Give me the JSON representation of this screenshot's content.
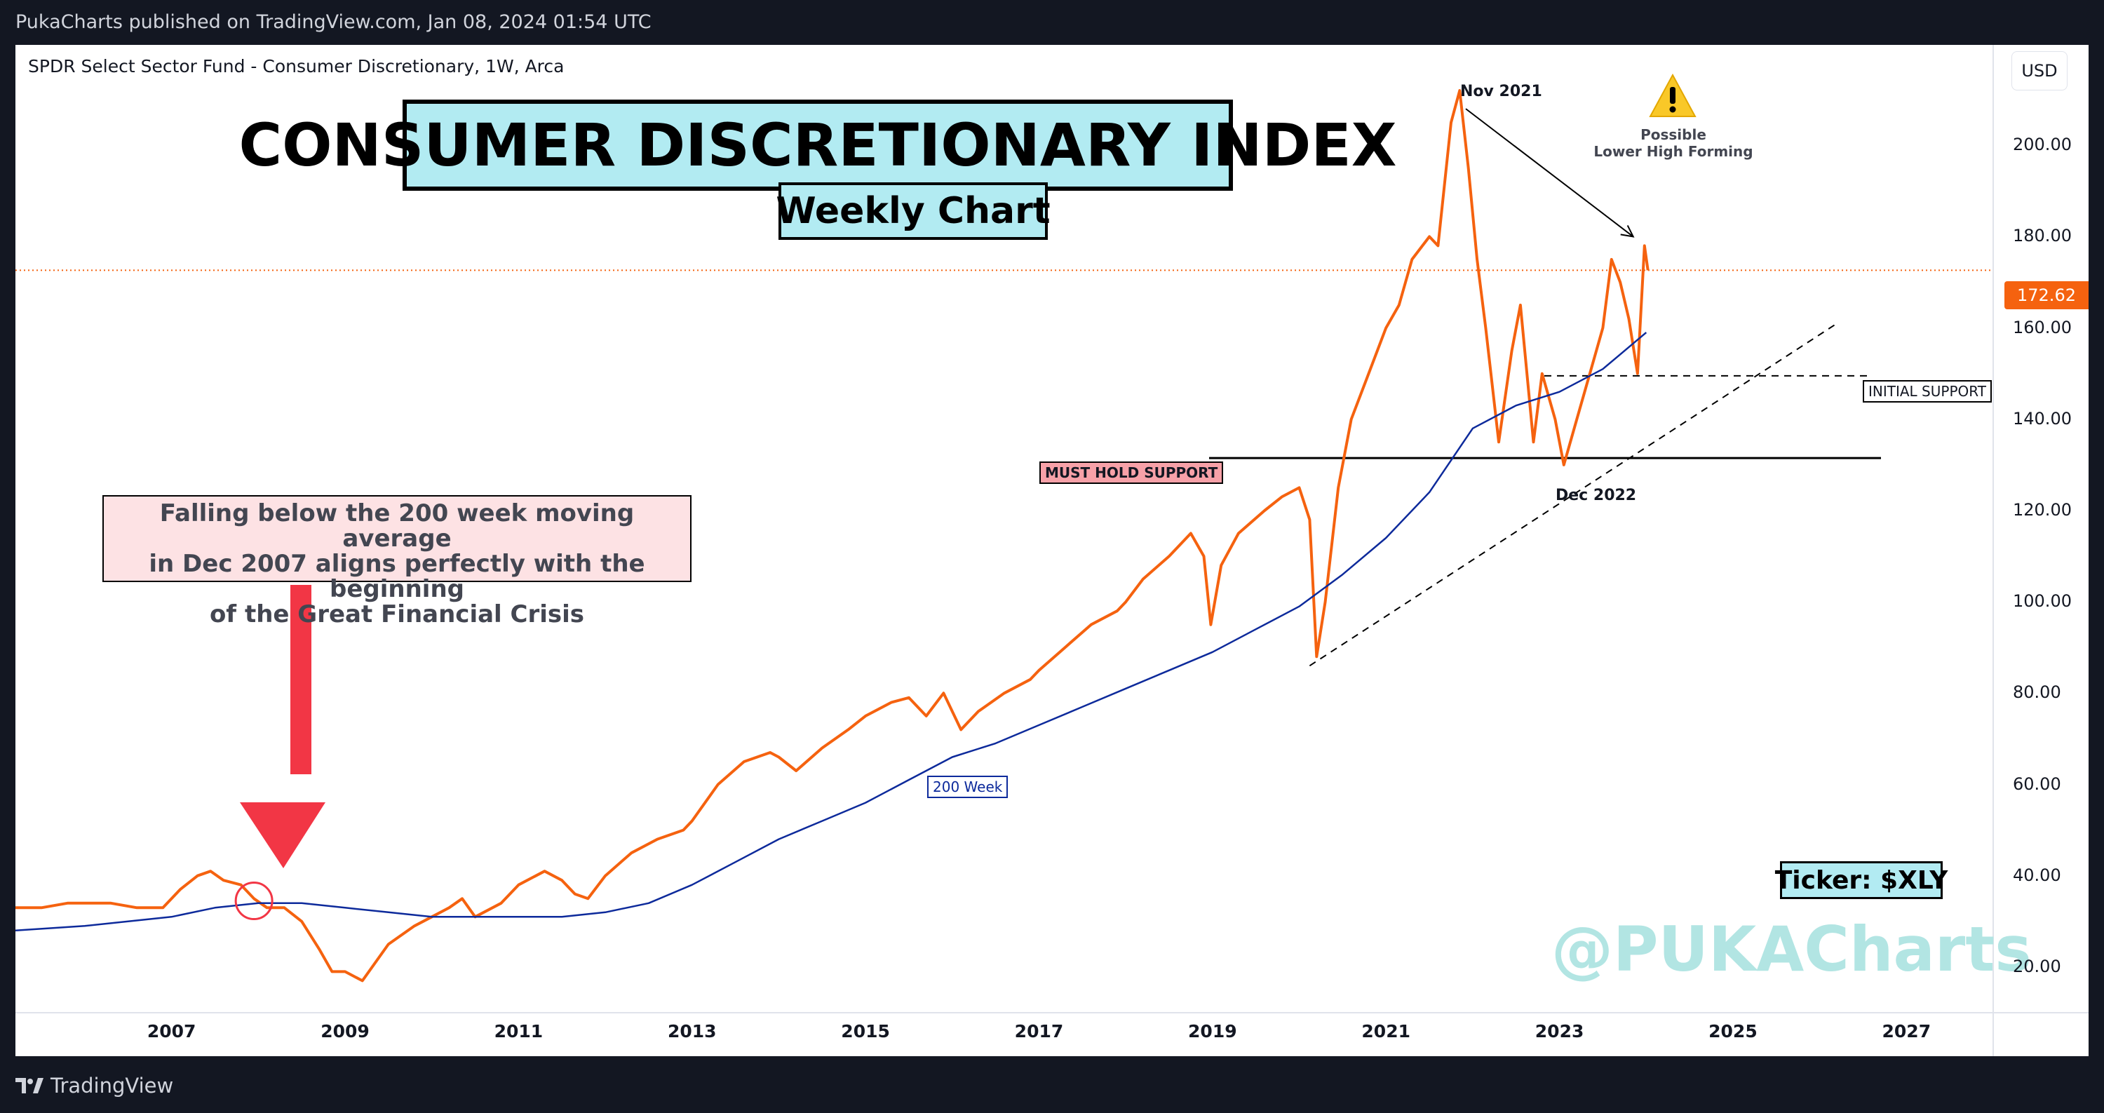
{
  "header": {
    "published_text": "PukaCharts published on TradingView.com, Jan 08, 2024 01:54 UTC"
  },
  "footer": {
    "logo_text": "TradingView"
  },
  "chart_header": {
    "symbol_text": "SPDR Select Sector Fund - Consumer Discretionary, 1W, Arca",
    "currency": "USD"
  },
  "annotations": {
    "title": "CONSUMER DISCRETIONARY INDEX",
    "subtitle": "Weekly Chart",
    "note_lines": [
      "Falling below the 200 week moving average",
      "in Dec 2007 aligns perfectly with the beginning",
      "of the Great Financial Crisis"
    ],
    "must_hold_support": "MUST HOLD SUPPORT",
    "initial_support": "INITIAL SUPPORT",
    "ma_label": "200 Week",
    "nov_2021": "Nov 2021",
    "dec_2022": "Dec 2022",
    "warning_lines": [
      "Possible",
      "Lower High Forming"
    ],
    "ticker": "Ticker: $XLY",
    "watermark": "@PUKACharts"
  },
  "colors": {
    "price_line": "#f5620f",
    "ma_line": "#0d2a9b",
    "background": "#ffffff",
    "frame": "#131722",
    "title_fill": "#b2ebf2",
    "note_fill": "#fde2e4",
    "must_hold_fill": "#f7a1a8",
    "warning_fill": "#f9c828"
  },
  "chart_data": {
    "type": "line",
    "title": "CONSUMER DISCRETIONARY INDEX",
    "subtitle": "Weekly Chart",
    "xlabel": "",
    "ylabel": "",
    "xlim": [
      2005.2,
      2028.0
    ],
    "ylim": [
      10,
      222
    ],
    "y_ticks": [
      "20.00",
      "40.00",
      "60.00",
      "80.00",
      "100.00",
      "120.00",
      "140.00",
      "160.00",
      "180.00",
      "200.00"
    ],
    "x_ticks": [
      "2007",
      "2009",
      "2011",
      "2013",
      "2015",
      "2017",
      "2019",
      "2021",
      "2023",
      "2025",
      "2027"
    ],
    "last_price": "172.62",
    "grid": false,
    "series": [
      {
        "name": "",
        "x": [
          2005.2,
          2005.5,
          2005.8,
          2006.0,
          2006.3,
          2006.6,
          2006.9,
          2007.1,
          2007.3,
          2007.45,
          2007.6,
          2007.8,
          2007.95,
          2008.1,
          2008.3,
          2008.5,
          2008.7,
          2008.85,
          2009.0,
          2009.2,
          2009.5,
          2009.8,
          2010.0,
          2010.2,
          2010.35,
          2010.5,
          2010.8,
          2011.0,
          2011.3,
          2011.5,
          2011.65,
          2011.8,
          2012.0,
          2012.3,
          2012.6,
          2012.9,
          2013.0,
          2013.3,
          2013.6,
          2013.9,
          2014.0,
          2014.2,
          2014.5,
          2014.8,
          2015.0,
          2015.3,
          2015.5,
          2015.7,
          2015.9,
          2016.1,
          2016.3,
          2016.6,
          2016.9,
          2017.0,
          2017.3,
          2017.6,
          2017.9,
          2018.0,
          2018.2,
          2018.5,
          2018.75,
          2018.9,
          2018.98,
          2019.1,
          2019.3,
          2019.6,
          2019.8,
          2020.0,
          2020.12,
          2020.2,
          2020.3,
          2020.45,
          2020.6,
          2020.8,
          2021.0,
          2021.15,
          2021.3,
          2021.5,
          2021.6,
          2021.75,
          2021.85,
          2021.95,
          2022.05,
          2022.15,
          2022.3,
          2022.45,
          2022.55,
          2022.7,
          2022.8,
          2022.95,
          2023.05,
          2023.2,
          2023.35,
          2023.5,
          2023.6,
          2023.7,
          2023.8,
          2023.9,
          2023.98,
          2024.02
        ],
        "values": [
          33,
          33,
          34,
          34,
          34,
          33,
          33,
          37,
          40,
          41,
          39,
          38,
          35,
          33,
          33,
          30,
          24,
          19,
          19,
          17,
          25,
          29,
          31,
          33,
          35,
          31,
          34,
          38,
          41,
          39,
          36,
          35,
          40,
          45,
          48,
          50,
          52,
          60,
          65,
          67,
          66,
          63,
          68,
          72,
          75,
          78,
          79,
          75,
          80,
          72,
          76,
          80,
          83,
          85,
          90,
          95,
          98,
          100,
          105,
          110,
          115,
          110,
          95,
          108,
          115,
          120,
          123,
          125,
          118,
          88,
          100,
          125,
          140,
          150,
          160,
          165,
          175,
          180,
          178,
          205,
          212,
          195,
          175,
          160,
          135,
          155,
          165,
          135,
          150,
          140,
          130,
          140,
          150,
          160,
          175,
          170,
          162,
          150,
          178,
          172.62
        ]
      },
      {
        "name": "200 Week",
        "x": [
          2005.2,
          2006.0,
          2007.0,
          2007.5,
          2008.0,
          2008.5,
          2009.0,
          2009.5,
          2010.0,
          2010.5,
          2011.0,
          2011.5,
          2012.0,
          2012.5,
          2013.0,
          2013.5,
          2014.0,
          2014.5,
          2015.0,
          2015.5,
          2016.0,
          2016.5,
          2017.0,
          2017.5,
          2018.0,
          2018.5,
          2019.0,
          2019.5,
          2020.0,
          2020.5,
          2021.0,
          2021.5,
          2022.0,
          2022.5,
          2023.0,
          2023.5,
          2024.0
        ],
        "values": [
          28,
          29,
          31,
          33,
          34,
          34,
          33,
          32,
          31,
          31,
          31,
          31,
          32,
          34,
          38,
          43,
          48,
          52,
          56,
          61,
          66,
          69,
          73,
          77,
          81,
          85,
          89,
          94,
          99,
          106,
          114,
          124,
          138,
          143,
          146,
          151,
          159
        ]
      }
    ]
  }
}
